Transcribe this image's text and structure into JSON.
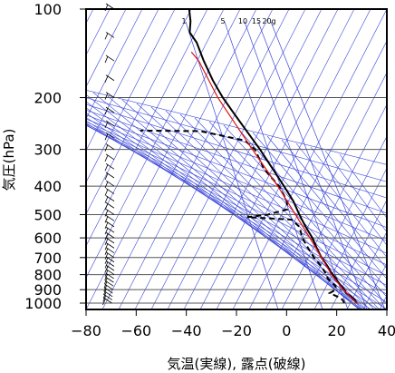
{
  "chart_data": {
    "type": "skew-t",
    "title": "",
    "xlabel": "気温(実線), 露点(破線)",
    "ylabel": "気圧(hPa)",
    "xlim": [
      -80,
      40
    ],
    "ylim": [
      1040,
      100
    ],
    "y_scale": "log",
    "x_ticks": [
      -80,
      -60,
      -40,
      -20,
      0,
      20,
      40
    ],
    "x_tick_labels": [
      "−80",
      "−60",
      "−40",
      "−20",
      "0",
      "20",
      "40"
    ],
    "y_ticks": [
      100,
      200,
      300,
      400,
      500,
      600,
      700,
      800,
      900,
      1000
    ],
    "y_tick_labels": [
      "100",
      "200",
      "300",
      "400",
      "500",
      "600",
      "700",
      "800",
      "900",
      "1000"
    ],
    "mixing_ratio_labels": [
      "1",
      "5",
      "10",
      "15",
      "20g"
    ],
    "mixing_ratio_values": [
      1,
      5,
      10,
      15,
      20
    ],
    "grid": true,
    "colors": {
      "background_lines": "#3a46d8",
      "parcel": "#e01010",
      "sounding": "#000000"
    },
    "series": [
      {
        "style": "solid",
        "points": [
          {
            "p": 1000,
            "t": 28
          },
          {
            "p": 975,
            "t": 26.7
          },
          {
            "p": 950,
            "t": 25
          },
          {
            "p": 925,
            "t": 22.5
          },
          {
            "p": 900,
            "t": 21.5
          },
          {
            "p": 875,
            "t": 19.8
          },
          {
            "p": 850,
            "t": 18.2
          },
          {
            "p": 825,
            "t": 16.8
          },
          {
            "p": 800,
            "t": 15
          },
          {
            "p": 775,
            "t": 13.4
          },
          {
            "p": 750,
            "t": 12
          },
          {
            "p": 700,
            "t": 8.5
          },
          {
            "p": 650,
            "t": 5.5
          },
          {
            "p": 600,
            "t": 2.5
          },
          {
            "p": 550,
            "t": -1.5
          },
          {
            "p": 500,
            "t": -5.5
          },
          {
            "p": 450,
            "t": -9.5
          },
          {
            "p": 400,
            "t": -15
          },
          {
            "p": 350,
            "t": -21.5
          },
          {
            "p": 300,
            "t": -29
          },
          {
            "p": 250,
            "t": -38.5
          },
          {
            "p": 225,
            "t": -44
          },
          {
            "p": 200,
            "t": -50
          },
          {
            "p": 175,
            "t": -56
          },
          {
            "p": 150,
            "t": -62
          },
          {
            "p": 130,
            "t": -67
          },
          {
            "p": 120,
            "t": -71
          },
          {
            "p": 110,
            "t": -72
          },
          {
            "p": 100,
            "t": -74
          }
        ]
      },
      {
        "style": "dashed",
        "points": [
          {
            "p": 1000,
            "t": 23
          },
          {
            "p": 975,
            "t": 22
          },
          {
            "p": 950,
            "t": 19.5
          },
          {
            "p": 925,
            "t": 16
          },
          {
            "p": 900,
            "t": 18
          },
          {
            "p": 875,
            "t": 17.5
          },
          {
            "p": 850,
            "t": 15.5
          },
          {
            "p": 825,
            "t": 13.5
          },
          {
            "p": 800,
            "t": 12.5
          },
          {
            "p": 775,
            "t": 11
          },
          {
            "p": 750,
            "t": 9.5
          },
          {
            "p": 700,
            "t": 5.5
          },
          {
            "p": 650,
            "t": 2
          },
          {
            "p": 600,
            "t": -1.5
          },
          {
            "p": 550,
            "t": -4
          },
          {
            "p": 520,
            "t": -8
          },
          {
            "p": 510,
            "t": -26
          },
          {
            "p": 500,
            "t": -18
          },
          {
            "p": 480,
            "t": -11
          },
          {
            "p": 450,
            "t": -12
          },
          {
            "p": 400,
            "t": -17
          },
          {
            "p": 350,
            "t": -25
          },
          {
            "p": 300,
            "t": -31
          },
          {
            "p": 280,
            "t": -36
          },
          {
            "p": 260,
            "t": -55
          },
          {
            "p": 259,
            "t": -79
          }
        ]
      },
      {
        "style": "parcel",
        "points": [
          {
            "p": 1000,
            "t": 28
          },
          {
            "p": 900,
            "t": 21
          },
          {
            "p": 800,
            "t": 14.5
          },
          {
            "p": 700,
            "t": 8.5
          },
          {
            "p": 600,
            "t": 1.5
          },
          {
            "p": 500,
            "t": -7
          },
          {
            "p": 400,
            "t": -17.5
          },
          {
            "p": 300,
            "t": -32
          },
          {
            "p": 250,
            "t": -41
          },
          {
            "p": 200,
            "t": -52
          },
          {
            "p": 150,
            "t": -64
          },
          {
            "p": 140,
            "t": -68
          }
        ]
      }
    ],
    "wind_levels_hpa": [
      1000,
      975,
      950,
      925,
      900,
      875,
      850,
      825,
      800,
      775,
      750,
      725,
      700,
      675,
      650,
      625,
      600,
      575,
      550,
      525,
      500,
      475,
      450,
      425,
      400,
      375,
      350,
      325,
      300,
      275,
      250,
      225,
      200,
      175,
      150,
      125,
      100
    ]
  }
}
